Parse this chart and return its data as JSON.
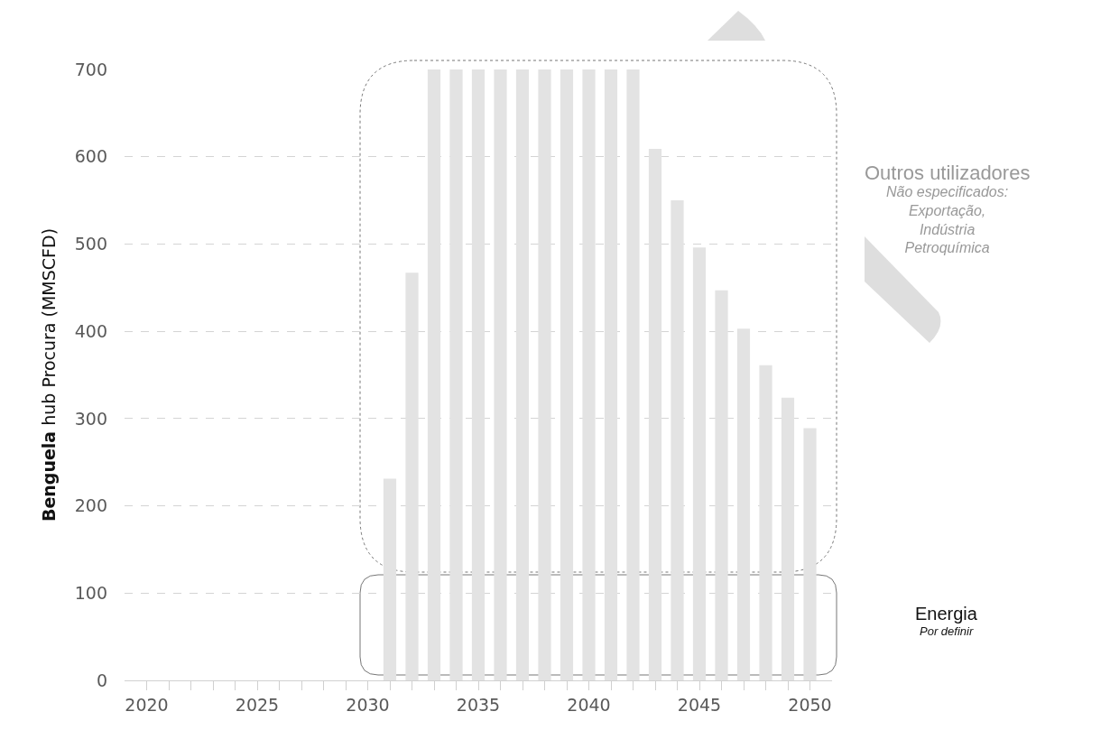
{
  "chart_data": {
    "type": "bar",
    "ylabel": "Benguela hub Procura (MMSCFD)",
    "x": [
      2031,
      2032,
      2033,
      2034,
      2035,
      2036,
      2037,
      2038,
      2039,
      2040,
      2041,
      2042,
      2043,
      2044,
      2045,
      2046,
      2047,
      2048,
      2049,
      2050
    ],
    "values": [
      231,
      467,
      700,
      700,
      700,
      700,
      700,
      700,
      700,
      700,
      700,
      700,
      609,
      550,
      496,
      447,
      403,
      361,
      324,
      289
    ],
    "color": "#e3e3e3",
    "xlim": [
      2019,
      2051
    ],
    "xticks": [
      2020,
      {
        "value": 2021,
        "label": null
      },
      {
        "value": 2022,
        "label": null
      },
      {
        "value": 2023,
        "label": null
      },
      {
        "value": 2024,
        "label": null
      },
      2025,
      {
        "value": 2026,
        "label": null
      },
      {
        "value": 2027,
        "label": null
      },
      {
        "value": 2028,
        "label": null
      },
      {
        "value": 2029,
        "label": null
      },
      2030,
      {
        "value": 2031,
        "label": null
      },
      {
        "value": 2032,
        "label": null
      },
      {
        "value": 2033,
        "label": null
      },
      {
        "value": 2034,
        "label": null
      },
      2035,
      {
        "value": 2036,
        "label": null
      },
      {
        "value": 2037,
        "label": null
      },
      {
        "value": 2038,
        "label": null
      },
      {
        "value": 2039,
        "label": null
      },
      2040,
      {
        "value": 2041,
        "label": null
      },
      {
        "value": 2042,
        "label": null
      },
      {
        "value": 2043,
        "label": null
      },
      {
        "value": 2044,
        "label": null
      },
      2045,
      {
        "value": 2046,
        "label": null
      },
      {
        "value": 2047,
        "label": null
      },
      {
        "value": 2048,
        "label": null
      },
      {
        "value": 2049,
        "label": null
      },
      2050
    ],
    "ylim": [
      0,
      700
    ],
    "yticks": [
      0,
      100,
      200,
      300,
      400,
      500,
      600,
      700
    ],
    "grid": "y",
    "annotations": [
      "Outros utilizadores",
      "Não especificados: Exportação, Indústria Petroquímica",
      "Energia",
      "Por definir"
    ]
  }
}
